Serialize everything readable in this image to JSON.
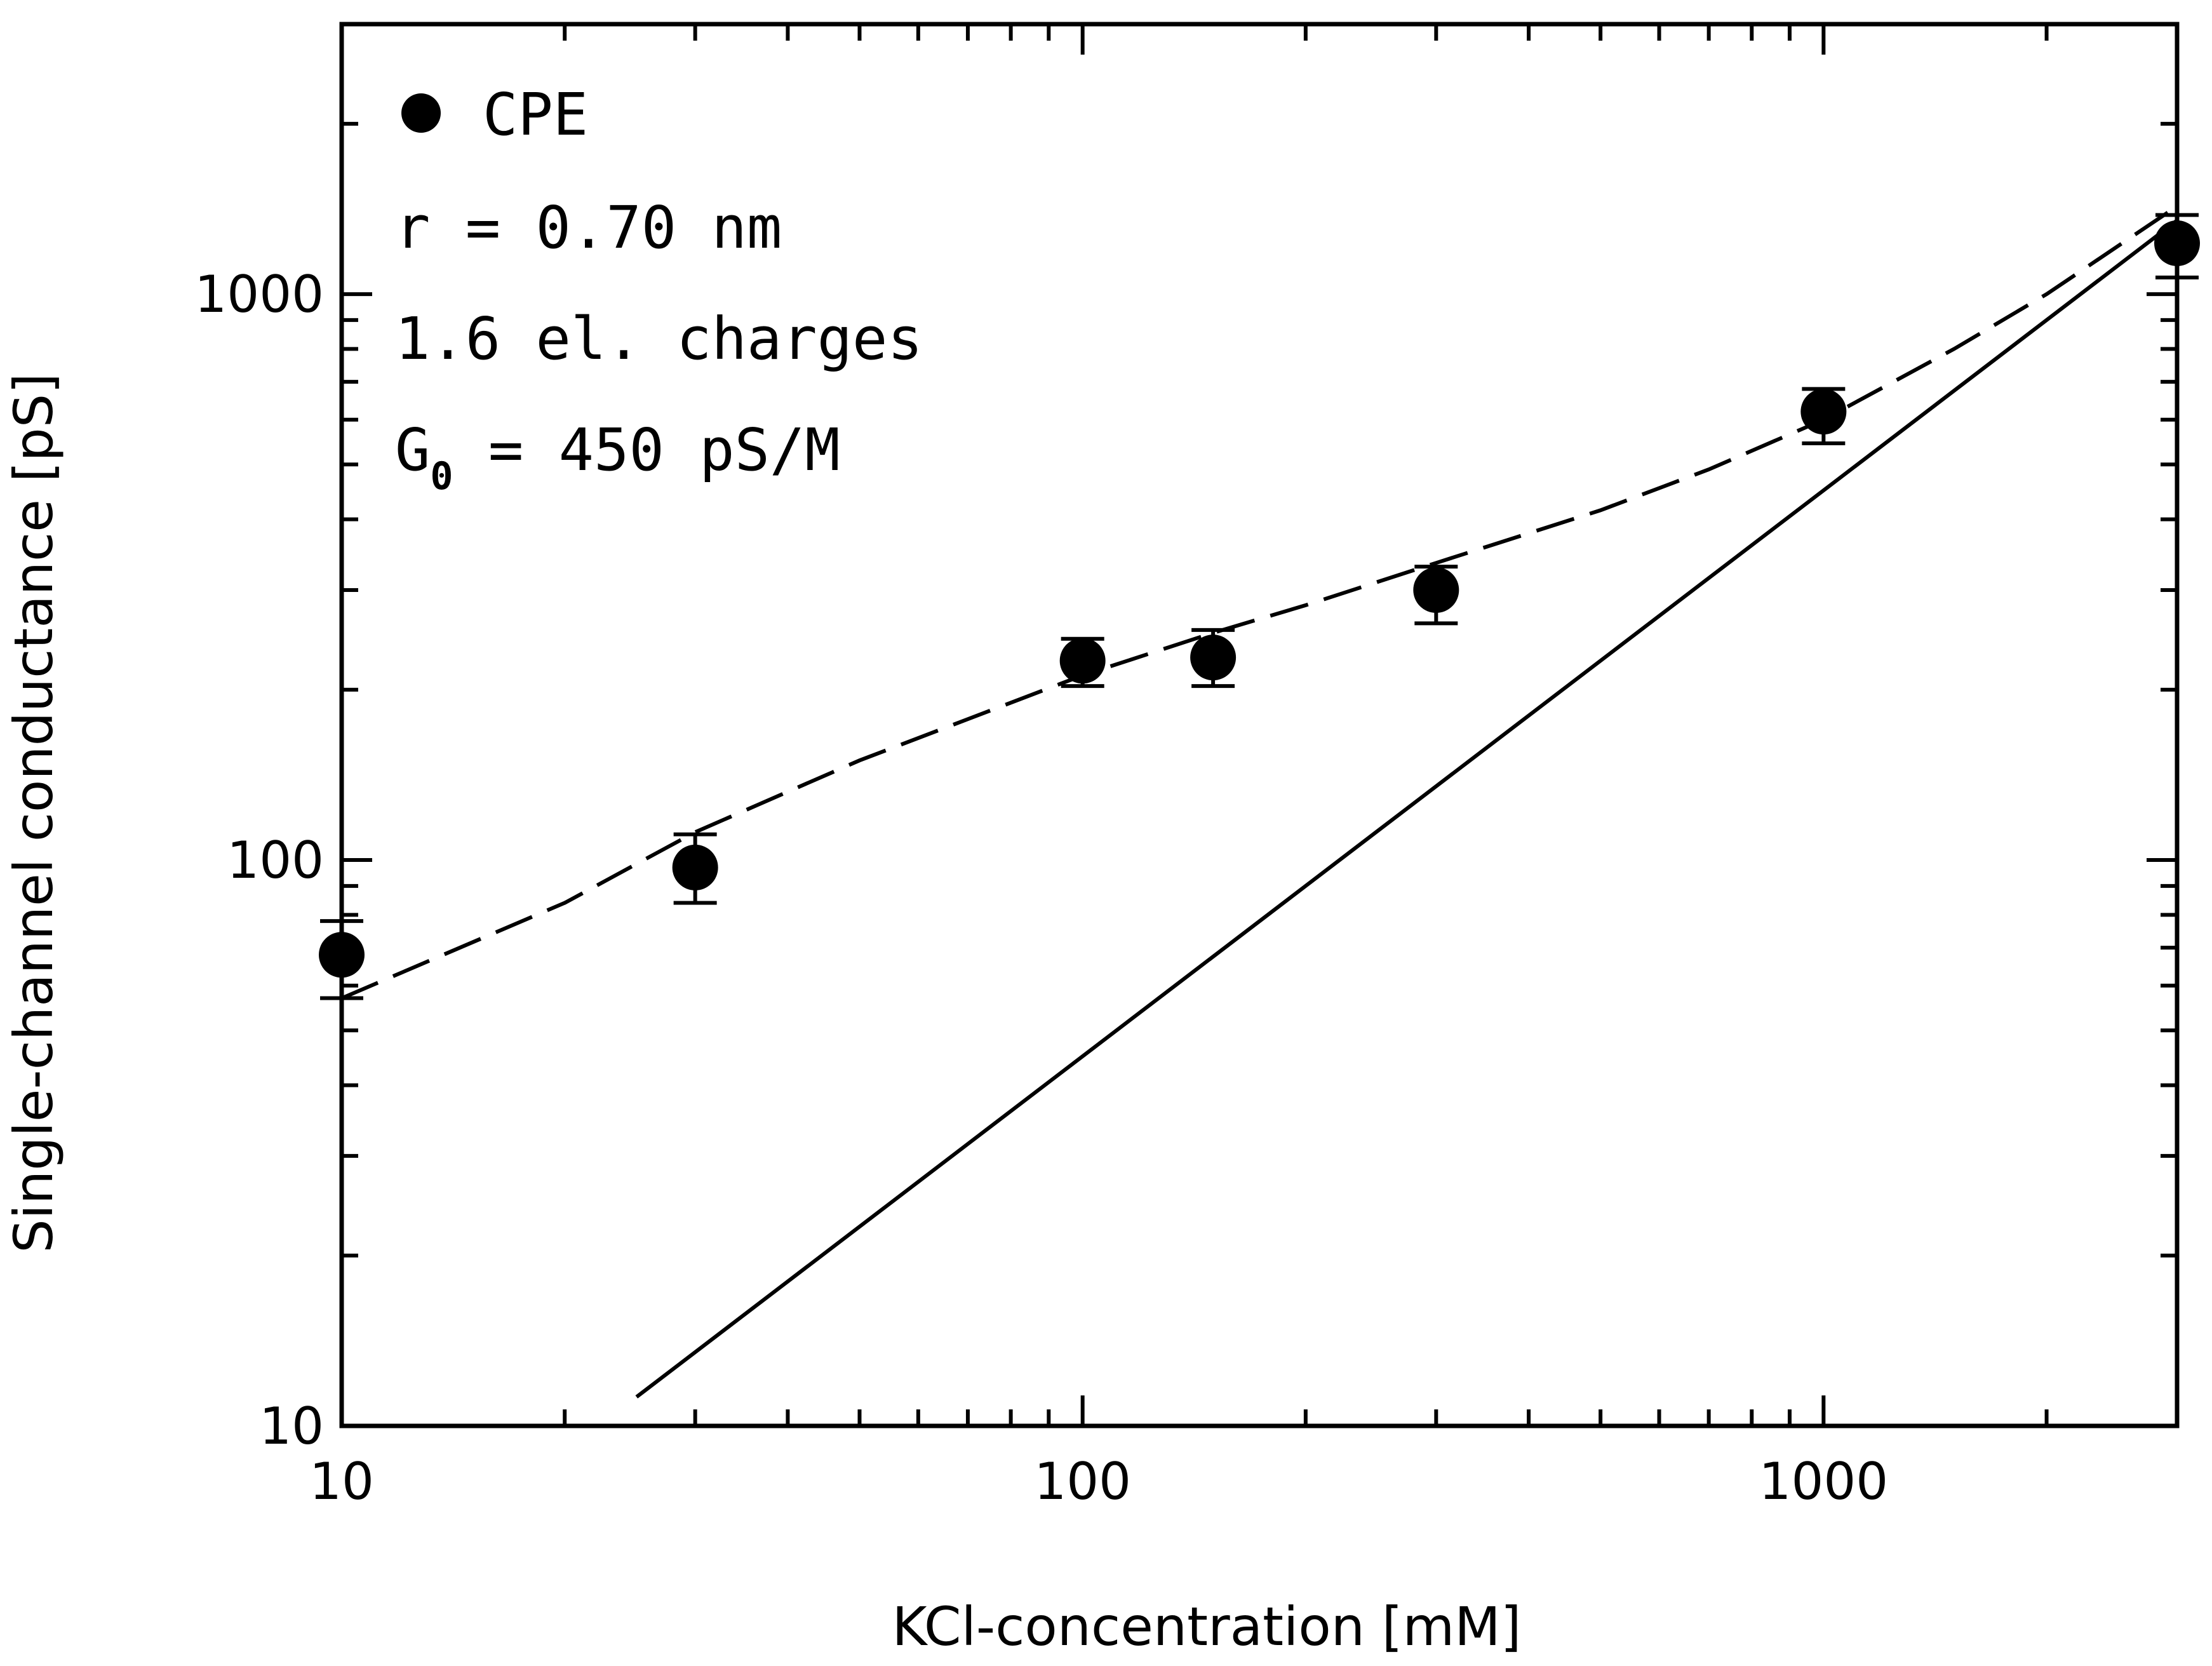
{
  "chart_data": {
    "type": "scatter",
    "title": "",
    "xlabel": "KCl-concentration [mM]",
    "ylabel": "Single-channel conductance [pS]",
    "xscale": "log",
    "yscale": "log",
    "xlim": [
      10,
      3000
    ],
    "ylim": [
      10,
      3000
    ],
    "x_tick_labels": [
      "10",
      "100",
      "1000"
    ],
    "y_tick_labels": [
      "10",
      "100",
      "1000"
    ],
    "grid": false,
    "legend_position": "top-left",
    "legend": {
      "series_label": "CPE",
      "r_text": "r = 0.70 nm",
      "charges_text": "1.6 el. charges",
      "g0_main": "G",
      "g0_sub": "0",
      "g0_rest": " = 450 pS/M"
    },
    "series": [
      {
        "name": "CPE",
        "kind": "points",
        "x": [
          10,
          30,
          100,
          150,
          300,
          1000,
          3000
        ],
        "y": [
          68,
          97,
          225,
          228,
          300,
          620,
          1230
        ],
        "err_low": [
          57,
          84,
          203,
          203,
          262,
          545,
          1070
        ],
        "err_high": [
          78,
          111,
          246,
          255,
          330,
          680,
          1380
        ]
      },
      {
        "name": "model fit (dashed)",
        "kind": "dashed-line",
        "x": [
          10,
          20,
          30,
          50,
          100,
          150,
          200,
          300,
          500,
          700,
          1000,
          1500,
          2000,
          3000
        ],
        "y": [
          57,
          84,
          112,
          150,
          212,
          252,
          282,
          335,
          415,
          490,
          600,
          800,
          1000,
          1430
        ]
      },
      {
        "name": "G0 x c (solid)",
        "kind": "solid-line",
        "x": [
          25,
          3000
        ],
        "y": [
          11.25,
          1350
        ]
      }
    ]
  }
}
